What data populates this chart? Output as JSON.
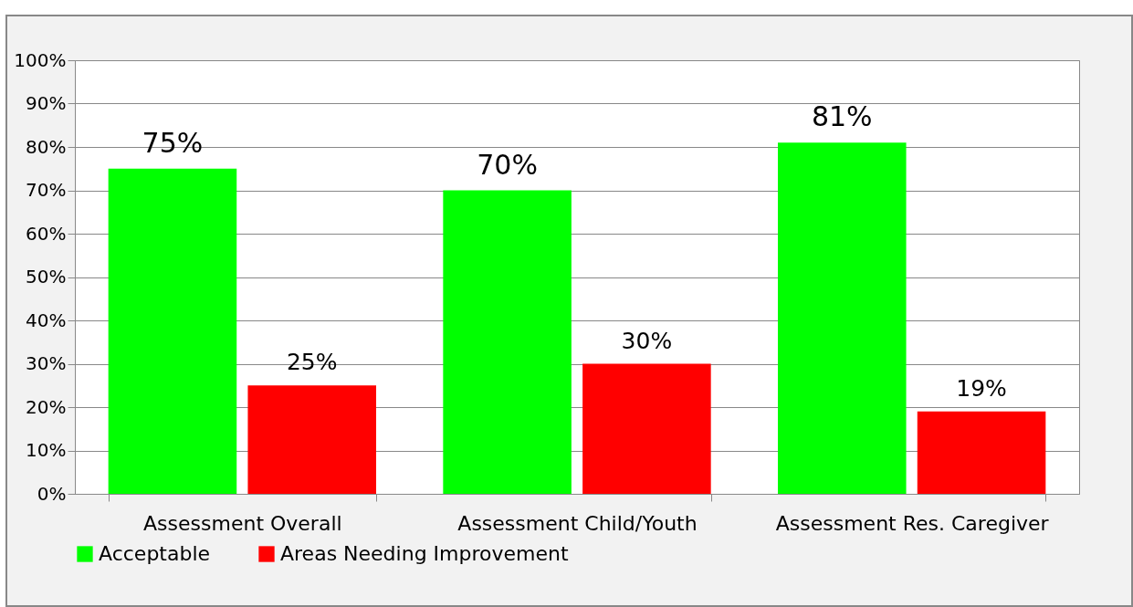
{
  "chart_data": {
    "type": "bar",
    "categories": [
      "Assessment Overall",
      "Assessment Child/Youth",
      "Assessment Res. Caregiver"
    ],
    "series": [
      {
        "name": "Acceptable",
        "color": "#00ff00",
        "values": [
          75,
          70,
          81
        ],
        "value_labels": [
          "75%",
          "70%",
          "81%"
        ]
      },
      {
        "name": "Areas Needing Improvement",
        "color": "#ff0000",
        "values": [
          25,
          30,
          19
        ],
        "value_labels": [
          "25%",
          "30%",
          "19%"
        ]
      }
    ],
    "ylim": [
      0,
      100
    ],
    "yticks": [
      {
        "value": 0,
        "label": "0%"
      },
      {
        "value": 10,
        "label": "10%"
      },
      {
        "value": 20,
        "label": "20%"
      },
      {
        "value": 30,
        "label": "30%"
      },
      {
        "value": 40,
        "label": "40%"
      },
      {
        "value": 50,
        "label": "50%"
      },
      {
        "value": 60,
        "label": "60%"
      },
      {
        "value": 70,
        "label": "70%"
      },
      {
        "value": 80,
        "label": "80%"
      },
      {
        "value": 90,
        "label": "90%"
      },
      {
        "value": 100,
        "label": "100%"
      }
    ],
    "grid": "y",
    "legend": "bottom"
  }
}
